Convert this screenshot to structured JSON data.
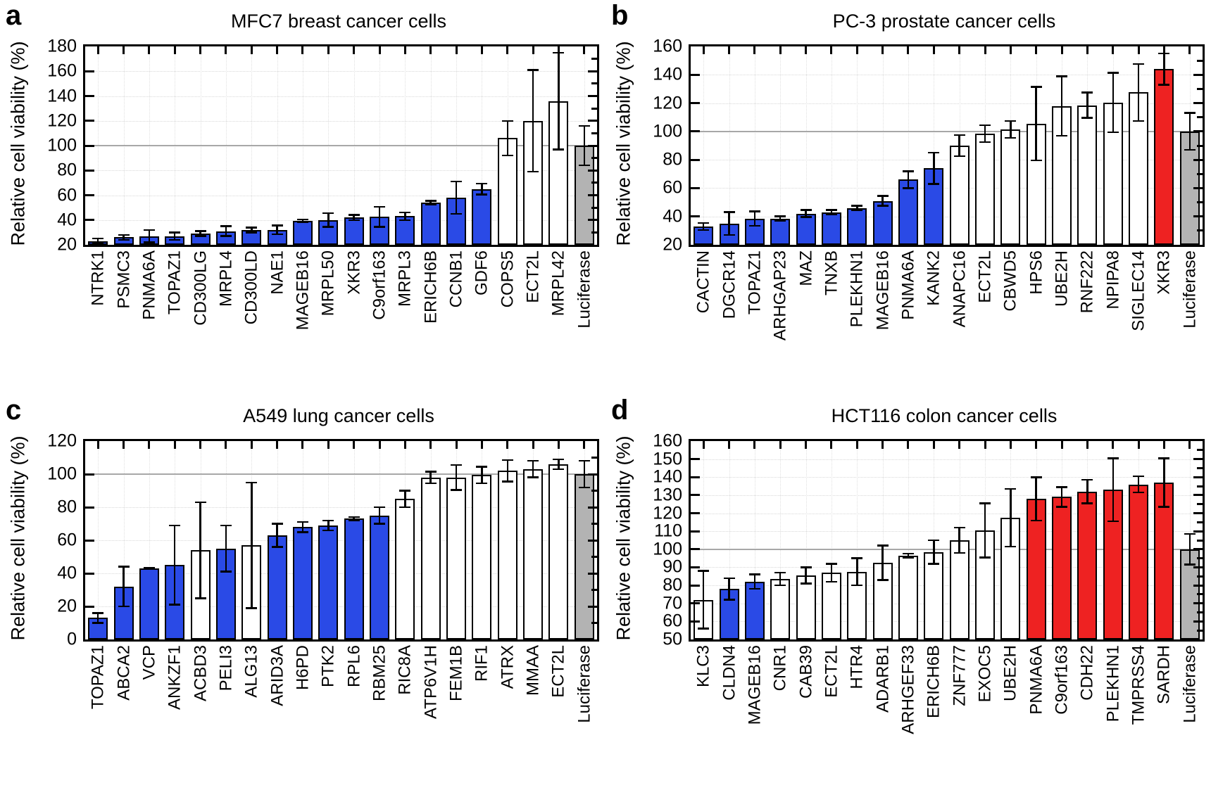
{
  "figure": {
    "description": "Four-panel bar chart figure of relative cell viability in cancer cell lines",
    "reference_line_value": 100
  },
  "colors": {
    "blue": "#2a4ae6",
    "white": "#ffffff",
    "red": "#ee2222",
    "gray": "#b3b3b3",
    "reference_line": "#a8a8a8",
    "axis": "#000000"
  },
  "chart_data": [
    {
      "type": "bar",
      "panel_letter": "a",
      "title": "MFC7 breast cancer cells",
      "ylabel": "Relative cell viability (%)",
      "ylim": [
        20,
        180
      ],
      "ytick_step": 20,
      "reference_line": 100,
      "grid": "dotted",
      "categories": [
        "NTRK1",
        "PSMC3",
        "PNMA6A",
        "TOPAZ1",
        "CD300LG",
        "MRPL4",
        "CD300LD",
        "NAE1",
        "MAGEB16",
        "MRPL50",
        "XKR3",
        "C9orf163",
        "MRPL3",
        "ERICH6B",
        "CCNB1",
        "GDF6",
        "COPS5",
        "ECT2L",
        "MRPL42",
        "Luciferase"
      ],
      "values": [
        23,
        26,
        27,
        27,
        29,
        31,
        32,
        32,
        39.5,
        40,
        42,
        42.5,
        43,
        54,
        58,
        65,
        106,
        120,
        136,
        100
      ],
      "errors": [
        2,
        2,
        5,
        3,
        2,
        4,
        2,
        3.5,
        1,
        5.5,
        2,
        8,
        3,
        1.5,
        13,
        4.5,
        14,
        41,
        39,
        16
      ],
      "bar_colors": [
        "blue",
        "blue",
        "blue",
        "blue",
        "blue",
        "blue",
        "blue",
        "blue",
        "blue",
        "blue",
        "blue",
        "blue",
        "blue",
        "blue",
        "blue",
        "blue",
        "white",
        "white",
        "white",
        "gray"
      ]
    },
    {
      "type": "bar",
      "panel_letter": "b",
      "title": "PC-3 prostate cancer cells",
      "ylabel": "Relative cell viability (%)",
      "ylim": [
        20,
        160
      ],
      "ytick_step": 20,
      "reference_line": 100,
      "grid": "dotted",
      "categories": [
        "CACTIN",
        "DGCR14",
        "TOPAZ1",
        "ARHGAP23",
        "MAZ",
        "TNXB",
        "PLEKHN1",
        "MAGEB16",
        "PNMA6A",
        "KANK2",
        "ANAPC16",
        "ECT2L",
        "CBWD5",
        "HPS6",
        "UBE2H",
        "RNF222",
        "NPIPA8",
        "SIGLEC14",
        "XKR3",
        "Luciferase"
      ],
      "values": [
        33,
        35,
        38.5,
        38.5,
        42,
        43,
        46,
        51,
        66,
        74,
        90,
        98.5,
        101.5,
        105.5,
        118,
        118.5,
        120.5,
        127.5,
        144,
        100
      ],
      "errors": [
        2.5,
        8,
        5,
        1.5,
        2.5,
        1.5,
        1.5,
        3.5,
        6,
        11,
        7.5,
        6,
        6,
        26,
        21,
        9,
        21,
        20,
        11,
        13
      ],
      "bar_colors": [
        "blue",
        "blue",
        "blue",
        "blue",
        "blue",
        "blue",
        "blue",
        "blue",
        "blue",
        "blue",
        "white",
        "white",
        "white",
        "white",
        "white",
        "white",
        "white",
        "white",
        "red",
        "gray"
      ]
    },
    {
      "type": "bar",
      "panel_letter": "c",
      "title": "A549 lung cancer cells",
      "ylabel": "Relative cell viability (%)",
      "ylim": [
        0,
        120
      ],
      "ytick_step": 20,
      "reference_line": 100,
      "grid": "dotted",
      "categories": [
        "TOPAZ1",
        "ABCA2",
        "VCP",
        "ANKZF1",
        "ACBD3",
        "PELI3",
        "ALG13",
        "ARID3A",
        "H6PD",
        "PTK2",
        "RPL6",
        "RBM25",
        "RIC8A",
        "ATP6V1H",
        "FEM1B",
        "RIF1",
        "ATRX",
        "MMAA",
        "ECT2L",
        "Luciferase"
      ],
      "values": [
        13,
        32,
        43,
        45,
        54,
        55,
        57,
        63,
        68,
        69,
        73,
        75,
        85,
        98,
        98,
        99.5,
        102,
        103,
        106,
        100
      ],
      "errors": [
        3,
        12,
        0.5,
        24,
        29,
        14,
        38,
        7,
        3,
        3,
        1,
        5,
        5,
        3.5,
        7.5,
        5,
        6.5,
        5,
        3,
        8
      ],
      "bar_colors": [
        "blue",
        "blue",
        "blue",
        "blue",
        "white",
        "blue",
        "white",
        "blue",
        "blue",
        "blue",
        "blue",
        "blue",
        "white",
        "white",
        "white",
        "white",
        "white",
        "white",
        "white",
        "gray"
      ]
    },
    {
      "type": "bar",
      "panel_letter": "d",
      "title": "HCT116 colon cancer cells",
      "ylabel": "Relative cell viability (%)",
      "ylim": [
        50,
        160
      ],
      "ytick_step": 10,
      "reference_line": 100,
      "grid": "dotted",
      "categories": [
        "KLC3",
        "CLDN4",
        "MAGEB16",
        "CNR1",
        "CAB39",
        "ECT2L",
        "HTR4",
        "ADARB1",
        "ARHGEF33",
        "ERICH6B",
        "ZNF777",
        "EXOC5",
        "UBE2H",
        "PNMA6A",
        "C9orf163",
        "CDH22",
        "PLEKHN1",
        "TMPRSS4",
        "SARDH",
        "Luciferase"
      ],
      "values": [
        72,
        78,
        82,
        83.5,
        85.5,
        87,
        87.5,
        92.5,
        96.5,
        98.5,
        105,
        110.5,
        117.5,
        128,
        129,
        132,
        133,
        136,
        137,
        100
      ],
      "errors": [
        16,
        6,
        4,
        3.5,
        4.5,
        5,
        7.5,
        9.5,
        1,
        6.5,
        7,
        15,
        16,
        12,
        5.5,
        6.5,
        17.5,
        4.5,
        13.5,
        8.5
      ],
      "bar_colors": [
        "white",
        "blue",
        "blue",
        "white",
        "white",
        "white",
        "white",
        "white",
        "white",
        "white",
        "white",
        "white",
        "white",
        "red",
        "red",
        "red",
        "red",
        "red",
        "red",
        "gray"
      ]
    }
  ]
}
